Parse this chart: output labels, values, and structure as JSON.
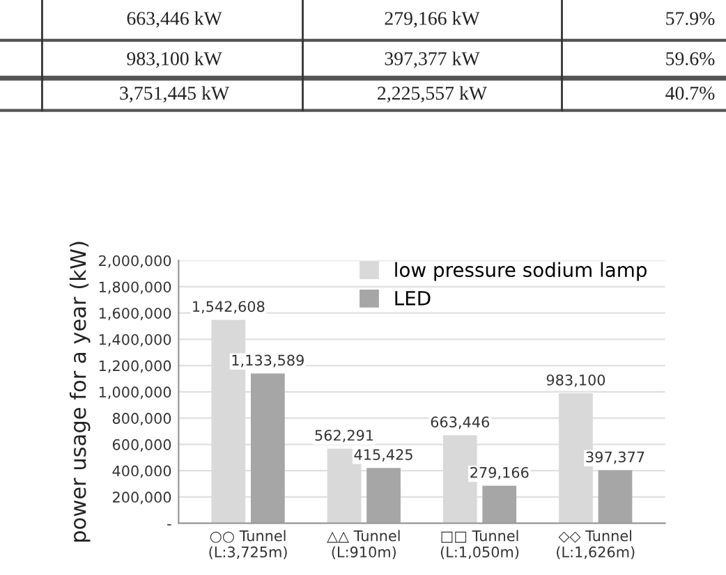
{
  "chart_data": {
    "type": "bar",
    "categories": [
      "○○ Tunnel\n(L:3,725m)",
      "△△ Tunnel\n(L:910m)",
      "□□ Tunnel\n(L:1,050m)",
      "◇◇ Tunnel\n(L:1,626m)"
    ],
    "series": [
      {
        "name": "low pressure sodium lamp",
        "color": "#d9d9d9",
        "values": [
          1542608,
          562291,
          663446,
          983100
        ],
        "value_labels": [
          "1,542,608",
          "562,291",
          "663,446",
          "983,100"
        ]
      },
      {
        "name": "LED",
        "color": "#a6a6a6",
        "values": [
          1133589,
          415425,
          279166,
          397377
        ],
        "value_labels": [
          "1,133,589",
          "415,425",
          "279,166",
          "397,377"
        ]
      }
    ],
    "ylabel": "power usage for a year (kW)",
    "ylim": [
      0,
      2000000
    ],
    "yticks": [
      {
        "value": 0,
        "label": "-"
      },
      {
        "value": 200000,
        "label": "200,000"
      },
      {
        "value": 400000,
        "label": "400,000"
      },
      {
        "value": 600000,
        "label": "600,000"
      },
      {
        "value": 800000,
        "label": "800,000"
      },
      {
        "value": 1000000,
        "label": "1,000,000"
      },
      {
        "value": 1200000,
        "label": "1,200,000"
      },
      {
        "value": 1400000,
        "label": "1,400,000"
      },
      {
        "value": 1600000,
        "label": "1,600,000"
      },
      {
        "value": 1800000,
        "label": "1,800,000"
      },
      {
        "value": 2000000,
        "label": "2,000,000"
      }
    ],
    "grid": "y",
    "legend": "top right",
    "annotations": [
      "663,446 kW",
      "279,166 kW",
      "57.9%",
      "983,100 kW",
      "397,377 kW",
      "59.6%",
      "3,751,445 kW",
      "2,225,557 kW",
      "40.7%"
    ]
  }
}
